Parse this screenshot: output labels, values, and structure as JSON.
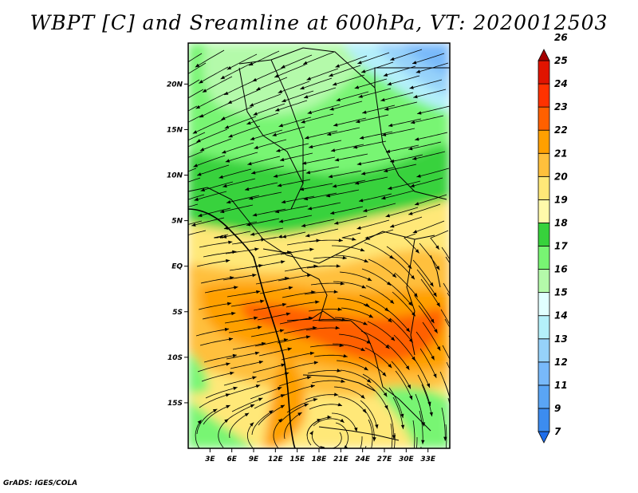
{
  "title": "WBPT [C] and Sreamline at 600hPa, VT: 2020012503",
  "credit": "GrADS: IGES/COLA",
  "map": {
    "lon_range": [
      0,
      36
    ],
    "lat_range": [
      -20,
      24.5
    ],
    "lon_ticks": [
      {
        "value": 3,
        "label": "3E"
      },
      {
        "value": 6,
        "label": "6E"
      },
      {
        "value": 9,
        "label": "9E"
      },
      {
        "value": 12,
        "label": "12E"
      },
      {
        "value": 15,
        "label": "15E"
      },
      {
        "value": 18,
        "label": "18E"
      },
      {
        "value": 21,
        "label": "21E"
      },
      {
        "value": 24,
        "label": "24E"
      },
      {
        "value": 27,
        "label": "27E"
      },
      {
        "value": 30,
        "label": "30E"
      },
      {
        "value": 33,
        "label": "33E"
      }
    ],
    "lat_ticks": [
      {
        "value": 20,
        "label": "20N"
      },
      {
        "value": 15,
        "label": "15N"
      },
      {
        "value": 10,
        "label": "10N"
      },
      {
        "value": 5,
        "label": "5N"
      },
      {
        "value": 0,
        "label": "EQ"
      },
      {
        "value": -5,
        "label": "5S"
      },
      {
        "value": -10,
        "label": "10S"
      },
      {
        "value": -15,
        "label": "15S"
      }
    ]
  },
  "colorbar": {
    "levels": [
      "7",
      "9",
      "11",
      "12",
      "13",
      "14",
      "15",
      "16",
      "17",
      "18",
      "19",
      "20",
      "21",
      "22",
      "23",
      "24",
      "25",
      "26"
    ],
    "colors": [
      "#1e6eeb",
      "#3c8cf0",
      "#5aa5f5",
      "#78b9fa",
      "#96d2fa",
      "#b4f0fa",
      "#e1ffff",
      "#b4faaa",
      "#78f573",
      "#37d23c",
      "#fffaaa",
      "#ffe878",
      "#ffc03c",
      "#ffa000",
      "#ff6000",
      "#ff3200",
      "#e11400",
      "#a50000"
    ]
  }
}
